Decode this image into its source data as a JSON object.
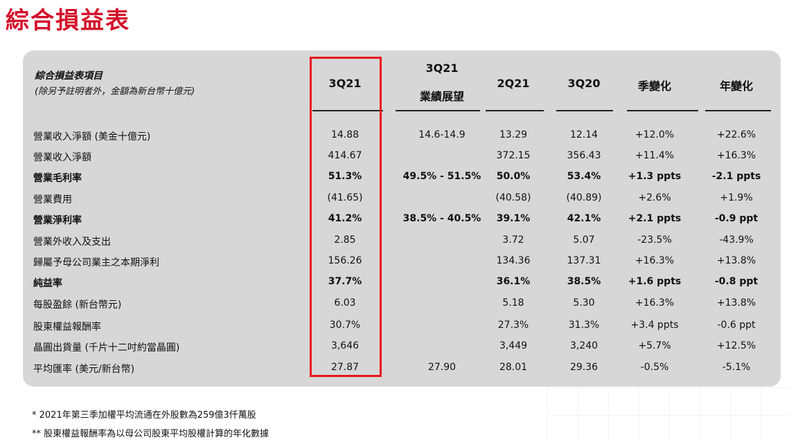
{
  "page": {
    "title": "綜合損益表"
  },
  "table": {
    "header_item": "綜合損益表項目",
    "header_sub": "(除另予註明者外，金額為新台幣十億元)",
    "columns": [
      {
        "line1": "",
        "line2": "3Q21"
      },
      {
        "line1": "3Q21",
        "line2": "業績展望"
      },
      {
        "line1": "",
        "line2": "2Q21"
      },
      {
        "line1": "",
        "line2": "3Q20"
      },
      {
        "line1": "",
        "line2": "季變化"
      },
      {
        "line1": "",
        "line2": "年變化"
      }
    ],
    "rows": [
      {
        "label": "營業收入淨額 (美金十億元)",
        "bold": false,
        "values": [
          "14.88",
          "14.6-14.9",
          "13.29",
          "12.14",
          "+12.0%",
          "+22.6%"
        ]
      },
      {
        "label": "營業收入淨額",
        "bold": false,
        "values": [
          "414.67",
          "",
          "372.15",
          "356.43",
          "+11.4%",
          "+16.3%"
        ]
      },
      {
        "label": "營業毛利率",
        "bold": true,
        "values": [
          "51.3%",
          "49.5% - 51.5%",
          "50.0%",
          "53.4%",
          "+1.3 ppts",
          "-2.1 ppts"
        ]
      },
      {
        "label": "營業費用",
        "bold": false,
        "values": [
          "(41.65)",
          "",
          "(40.58)",
          "(40.89)",
          "+2.6%",
          "+1.9%"
        ]
      },
      {
        "label": "營業淨利率",
        "bold": true,
        "values": [
          "41.2%",
          "38.5% - 40.5%",
          "39.1%",
          "42.1%",
          "+2.1 ppts",
          "-0.9 ppt"
        ]
      },
      {
        "label": "營業外收入及支出",
        "bold": false,
        "values": [
          "2.85",
          "",
          "3.72",
          "5.07",
          "-23.5%",
          "-43.9%"
        ]
      },
      {
        "label": "歸屬予母公司業主之本期淨利",
        "bold": false,
        "values": [
          "156.26",
          "",
          "134.36",
          "137.31",
          "+16.3%",
          "+13.8%"
        ]
      },
      {
        "label": "純益率",
        "bold": true,
        "values": [
          "37.7%",
          "",
          "36.1%",
          "38.5%",
          "+1.6 ppts",
          "-0.8 ppt"
        ]
      },
      {
        "label": "每股盈餘 (新台幣元)",
        "bold": false,
        "values": [
          "6.03",
          "",
          "5.18",
          "5.30",
          "+16.3%",
          "+13.8%"
        ]
      },
      {
        "label": "股東權益報酬率",
        "bold": false,
        "values": [
          "30.7%",
          "",
          "27.3%",
          "31.3%",
          "+3.4 ppts",
          "-0.6 ppt"
        ]
      },
      {
        "label": "晶圓出貨量 (千片十二吋約當晶圓)",
        "bold": false,
        "values": [
          "3,646",
          "",
          "3,449",
          "3,240",
          "+5.7%",
          "+12.5%"
        ]
      },
      {
        "label": "平均匯率 (美元/新台幣)",
        "bold": false,
        "values": [
          "27.87",
          "27.90",
          "28.01",
          "29.36",
          "-0.5%",
          "-5.1%"
        ]
      }
    ]
  },
  "footnotes": [
    "*   2021年第三季加權平均流通在外股數為259億3仟萬股",
    "**  股東權益報酬率為以母公司股東平均股權計算的年化數據"
  ],
  "colors": {
    "title": "#d3102a",
    "highlight_border": "#e8141c",
    "panel_bg": "#d7d7d7"
  }
}
